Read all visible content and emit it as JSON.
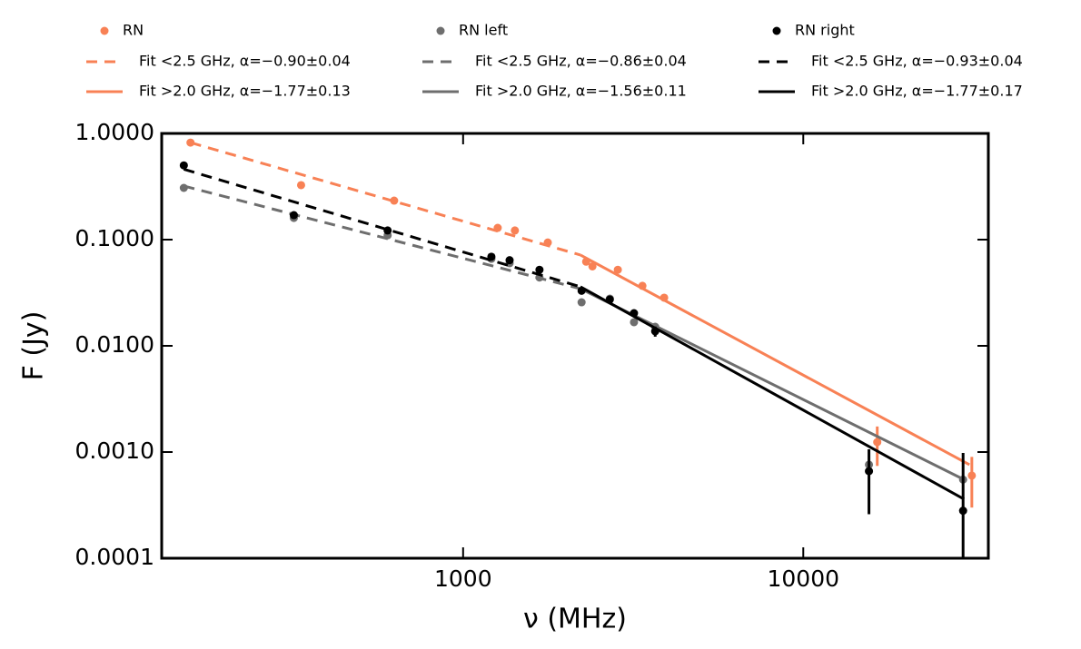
{
  "chart_data": {
    "type": "scatter",
    "xlabel": "ν (MHz)",
    "ylabel": "F (Jy)",
    "xscale": "log",
    "yscale": "log",
    "xlim": [
      130,
      35000
    ],
    "ylim": [
      0.0001,
      1
    ],
    "xticks": [
      1000,
      10000
    ],
    "yticks": [
      {
        "value": 0.0001,
        "label": "0.0001"
      },
      {
        "value": 0.001,
        "label": "0.0010"
      },
      {
        "value": 0.01,
        "label": "0.0100"
      },
      {
        "value": 0.1,
        "label": "0.1000"
      },
      {
        "value": 1,
        "label": "1.0000"
      }
    ],
    "legend": "top",
    "series": [
      {
        "name": "RN",
        "color": "#f88155",
        "style": "points",
        "x": [
          158,
          334,
          627,
          1264,
          1420,
          1774,
          2300,
          2400,
          2850,
          3366,
          3900,
          16500,
          31300
        ],
        "values": [
          0.82,
          0.326,
          0.233,
          0.129,
          0.122,
          0.094,
          0.062,
          0.056,
          0.052,
          0.0367,
          0.0284,
          0.00124,
          0.0006
        ],
        "errors": [
          null,
          null,
          null,
          null,
          null,
          null,
          null,
          null,
          null,
          null,
          null,
          0.0005,
          0.0003
        ]
      },
      {
        "name": "Fit  <2.5 GHz, α=−0.90±0.04",
        "color": "#f88155",
        "style": "dashed",
        "x": [
          158,
          2213
        ],
        "values": [
          0.82,
          0.0716
        ]
      },
      {
        "name": "Fit  >2.0 GHz, α=−1.77±0.13",
        "color": "#f88155",
        "style": "solid",
        "x": [
          2213,
          30800
        ],
        "values": [
          0.0716,
          0.00076
        ]
      },
      {
        "name": "RN left",
        "color": "#6e6e6e",
        "style": "points",
        "x": [
          151,
          318,
          600,
          1211,
          1370,
          1677,
          2230,
          2700,
          3180,
          3670,
          15600,
          29500
        ],
        "values": [
          0.307,
          0.16,
          0.11,
          0.066,
          0.06,
          0.044,
          0.0257,
          0.0278,
          0.0167,
          0.0151,
          0.00076,
          0.00055
        ],
        "errors": [
          null,
          null,
          null,
          null,
          null,
          null,
          null,
          null,
          null,
          null,
          null,
          null
        ]
      },
      {
        "name": "Fit  <2.5 GHz, α=−0.86±0.04",
        "color": "#6e6e6e",
        "style": "dashed",
        "x": [
          151,
          2213
        ],
        "values": [
          0.32,
          0.0345
        ]
      },
      {
        "name": "Fit  >2.0 GHz, α=−1.56±0.11",
        "color": "#6e6e6e",
        "style": "solid",
        "x": [
          2213,
          29700
        ],
        "values": [
          0.0345,
          0.00055
        ]
      },
      {
        "name": "RN right",
        "color": "#000000",
        "style": "points",
        "x": [
          151,
          318,
          600,
          1211,
          1370,
          1677,
          2230,
          2700,
          3180,
          3670,
          15600,
          29500
        ],
        "values": [
          0.5,
          0.17,
          0.122,
          0.069,
          0.064,
          0.052,
          0.033,
          0.0273,
          0.0203,
          0.0137,
          0.00066,
          0.00028
        ],
        "errors": [
          null,
          null,
          null,
          null,
          null,
          null,
          null,
          null,
          null,
          0.0015,
          0.0004,
          0.0007
        ]
      },
      {
        "name": "Fit  <2.5 GHz, α=−0.93±0.04",
        "color": "#000000",
        "style": "dashed",
        "x": [
          151,
          2213
        ],
        "values": [
          0.46,
          0.036
        ]
      },
      {
        "name": "Fit  >2.0 GHz, α=−1.77±0.17",
        "color": "#000000",
        "style": "solid",
        "x": [
          2213,
          29700
        ],
        "values": [
          0.036,
          0.00036
        ]
      }
    ]
  }
}
